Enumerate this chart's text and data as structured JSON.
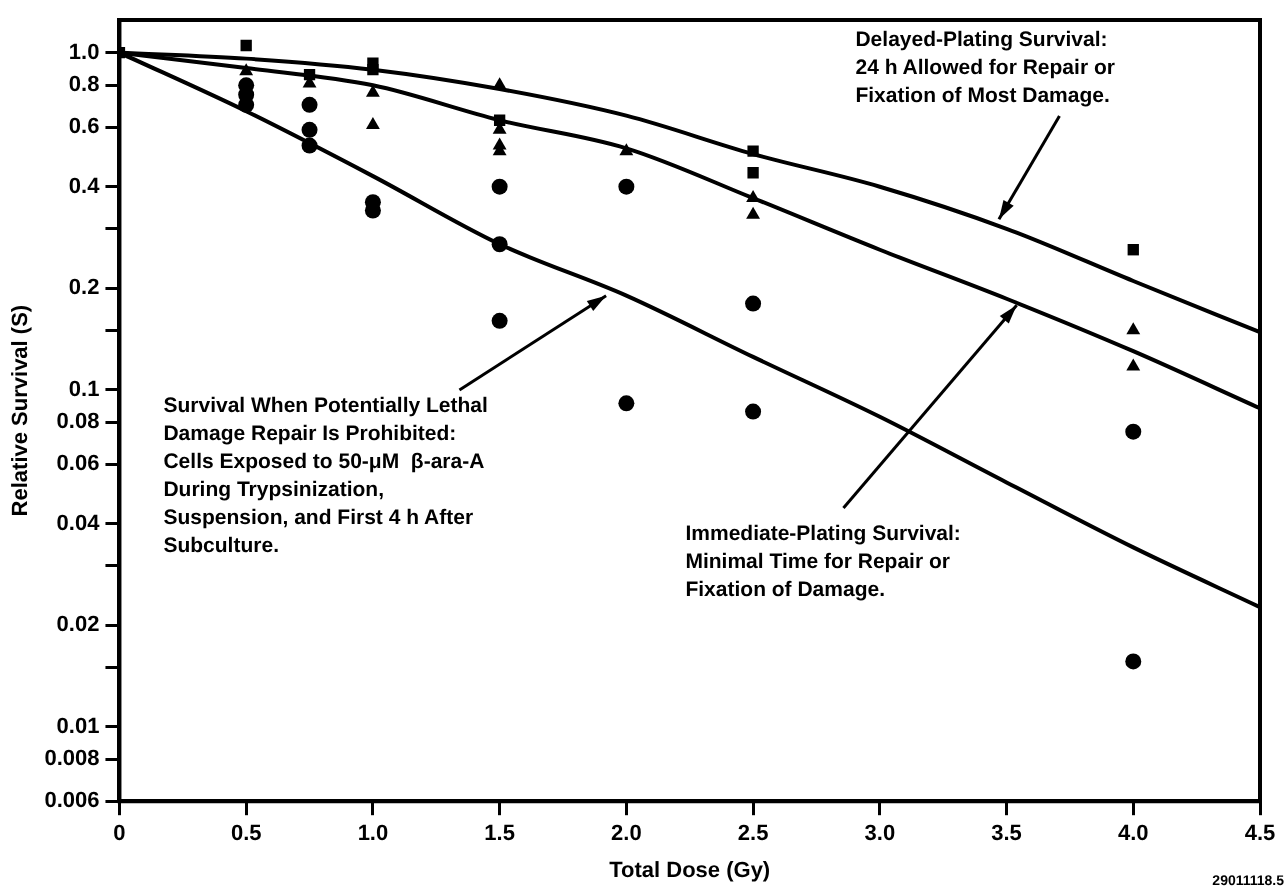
{
  "chart_data": {
    "type": "scatter",
    "xlabel": "Total Dose (Gy)",
    "ylabel": "Relative Survival (S)",
    "log": "y",
    "grid": false,
    "legend": false,
    "xlim": [
      0,
      4.5
    ],
    "xticks": [
      0,
      0.5,
      {
        "value": 1,
        "label": "1.0"
      },
      1.5,
      {
        "value": 2,
        "label": "2.0"
      },
      2.5,
      {
        "value": 3,
        "label": "3.0"
      },
      3.5,
      {
        "value": 4,
        "label": "4.0"
      },
      4.5
    ],
    "ylim": [
      0.006,
      1.25
    ],
    "yticks": [
      0.006,
      0.008,
      0.01,
      {
        "value": 0.015,
        "label": null
      },
      0.02,
      {
        "value": 0.03,
        "label": null
      },
      0.04,
      0.06,
      0.08,
      0.1,
      {
        "value": 0.15,
        "label": null
      },
      0.2,
      {
        "value": 0.3,
        "label": null
      },
      0.4,
      0.6,
      0.8,
      {
        "value": 1,
        "label": "1.0"
      }
    ],
    "series": [
      {
        "type": "line",
        "marker": "none",
        "line_style": "solid",
        "color": "#000000",
        "x": [
          0,
          0.5,
          1,
          1.5,
          2,
          2.5,
          3,
          3.5,
          4,
          4.5
        ],
        "values": [
          1,
          0.96,
          0.89,
          0.78,
          0.65,
          0.5,
          0.4,
          0.3,
          0.21,
          0.148
        ]
      },
      {
        "type": "line",
        "marker": "none",
        "line_style": "solid",
        "color": "#000000",
        "x": [
          0,
          0.5,
          1,
          1.5,
          2,
          2.5,
          3,
          3.5,
          4,
          4.5
        ],
        "values": [
          1,
          0.9,
          0.8,
          0.63,
          0.52,
          0.37,
          0.26,
          0.186,
          0.13,
          0.088
        ]
      },
      {
        "type": "line",
        "marker": "none",
        "line_style": "solid",
        "color": "#000000",
        "x": [
          0,
          0.5,
          1,
          1.5,
          2,
          2.5,
          3,
          3.5,
          4,
          4.5
        ],
        "values": [
          1,
          0.67,
          0.43,
          0.27,
          0.19,
          0.125,
          0.083,
          0.053,
          0.034,
          0.0226
        ]
      },
      {
        "type": "scatter",
        "marker": "square",
        "color": "#000000",
        "x": [
          0,
          0.5,
          0.75,
          1,
          1,
          1.5,
          2.5,
          2.5,
          4
        ],
        "values": [
          1,
          1.05,
          0.86,
          0.93,
          0.89,
          0.63,
          0.51,
          0.44,
          0.26
        ]
      },
      {
        "type": "scatter",
        "marker": "triangle",
        "color": "#000000",
        "x": [
          0.5,
          0.75,
          1,
          1,
          1.5,
          1.5,
          1.5,
          1.5,
          2,
          2.5,
          2.5,
          4,
          4
        ],
        "values": [
          0.88,
          0.81,
          0.76,
          0.61,
          0.8,
          0.59,
          0.53,
          0.51,
          0.51,
          0.37,
          0.33,
          0.15,
          0.117
        ]
      },
      {
        "type": "scatter",
        "marker": "circle",
        "color": "#000000",
        "x": [
          0.5,
          0.5,
          0.5,
          0.75,
          0.75,
          0.75,
          1,
          1,
          1.5,
          1.5,
          1.5,
          2,
          2,
          2.5,
          2.5,
          4,
          4
        ],
        "values": [
          0.8,
          0.75,
          0.7,
          0.7,
          0.59,
          0.53,
          0.36,
          0.34,
          0.4,
          0.27,
          0.16,
          0.4,
          0.091,
          0.18,
          0.086,
          0.075,
          0.0156
        ]
      }
    ],
    "annotations": [
      {
        "text": "Survival When Potentially Lethal\nDamage Repair Is Prohibited:\nCells Exposed to 50-μM  β-ara-A\nDuring Trypsinization,\nSuspension, and First 4 h After\nSubculture.",
        "x": 1.92,
        "y": 0.19
      },
      {
        "text": "Delayed-Plating Survival:\n24 h Allowed for Repair or\nFixation of Most Damage.",
        "x": 3.47,
        "y": 0.32
      },
      {
        "text": "Immediate-Plating Survival:\nMinimal Time for Repair or\nFixation of Damage.",
        "x": 3.54,
        "y": 0.178
      },
      "29011118.5"
    ]
  }
}
